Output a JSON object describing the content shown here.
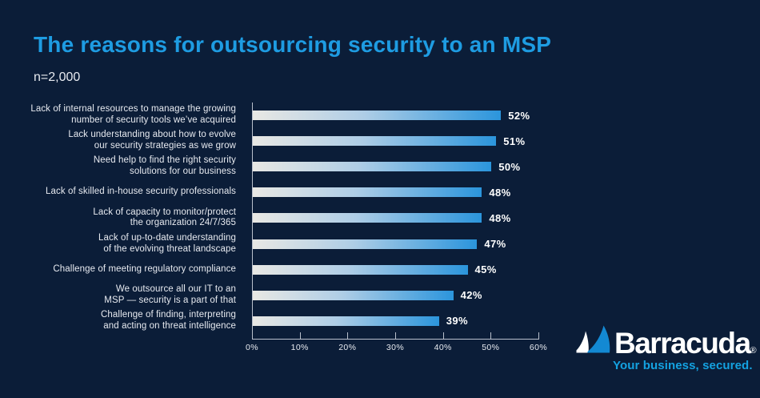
{
  "header": {
    "title": "The reasons for outsourcing security to an MSP",
    "sample_size": "n=2,000"
  },
  "colors": {
    "background": "#0b1d38",
    "title_blue": "#1e9ce2",
    "text": "#e7eaf0",
    "axis": "#b9c0cc",
    "bar_start": "#e9e8e4",
    "bar_end": "#2b95dc",
    "logo_blue": "#14a2e1",
    "fin_blue": "#1389d3",
    "value_label": "#ffffff"
  },
  "chart_data": {
    "type": "bar",
    "orientation": "horizontal",
    "title": "The reasons for outsourcing security to an MSP",
    "subtitle": "n=2,000",
    "categories": [
      "Lack of internal resources to manage the growing\nnumber of security tools we’ve acquired",
      "Lack understanding about how to evolve\nour security strategies as we grow",
      "Need help to find the right security\nsolutions for our business",
      "Lack of skilled in-house security professionals",
      "Lack of capacity to monitor/protect\nthe organization 24/7/365",
      "Lack of up-to-date understanding\nof the evolving threat landscape",
      "Challenge of meeting regulatory compliance",
      "We outsource all our IT to an\nMSP — security is a part of that",
      "Challenge of finding, interpreting\nand acting on threat intelligence"
    ],
    "values": [
      52,
      51,
      50,
      48,
      48,
      47,
      45,
      42,
      39
    ],
    "value_labels": [
      "52%",
      "51%",
      "50%",
      "48%",
      "48%",
      "47%",
      "45%",
      "42%",
      "39%"
    ],
    "xlabel": "",
    "ylabel": "",
    "xlim": [
      0,
      60
    ],
    "x_tick_labels": [
      "0%",
      "10%",
      "20%",
      "30%",
      "40%",
      "50%",
      "60%"
    ],
    "grid": false,
    "legend": null,
    "bar_style": "gradient light-to-blue, left to right"
  },
  "logo": {
    "wordmark": "Barracuda",
    "registered_mark": "®",
    "tagline": "Your business, secured."
  }
}
